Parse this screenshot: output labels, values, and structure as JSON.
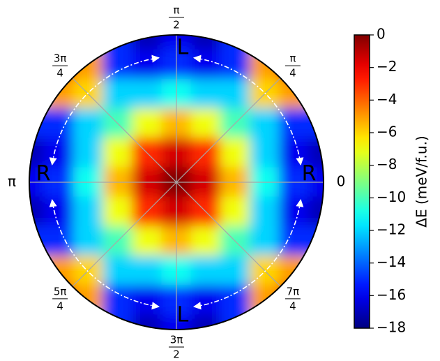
{
  "chart_data": {
    "type": "polar-heatmap",
    "x": [
      -1,
      -0.8,
      -0.6,
      -0.4,
      -0.2,
      0,
      0.2,
      0.4,
      0.6,
      0.8,
      1
    ],
    "y": [
      1,
      0.8,
      0.6,
      0.4,
      0.2,
      0,
      -0.2,
      -0.4,
      -0.6,
      -0.8,
      -1
    ],
    "z": [
      [
        null,
        null,
        null,
        -15,
        -17,
        -16,
        -17,
        -15,
        null,
        null,
        null
      ],
      [
        null,
        -2,
        -5,
        -15,
        -16,
        -15,
        -16,
        -15,
        -5,
        -2,
        null
      ],
      [
        null,
        -5,
        -6,
        -12,
        -12,
        -11,
        -12,
        -12,
        -6,
        -5,
        null
      ],
      [
        -15,
        -15,
        -12,
        -10,
        -7,
        -5.5,
        -7,
        -10,
        -12,
        -15,
        -15
      ],
      [
        -17,
        -16,
        -12,
        -7,
        -3,
        -1.5,
        -3,
        -7,
        -12,
        -16,
        -17
      ],
      [
        -16,
        -15,
        -11,
        -5.5,
        -1.5,
        0,
        -1.5,
        -5.5,
        -11,
        -15,
        -16
      ],
      [
        -17,
        -16,
        -12,
        -7,
        -3,
        -1.5,
        -3,
        -7,
        -12,
        -16,
        -17
      ],
      [
        -15,
        -15,
        -12,
        -10,
        -7,
        -5.5,
        -7,
        -10,
        -12,
        -15,
        -15
      ],
      [
        null,
        -5,
        -6,
        -12,
        -12,
        -11,
        -12,
        -12,
        -6,
        -5,
        null
      ],
      [
        null,
        -2,
        -5,
        -15,
        -16,
        -15,
        -16,
        -15,
        -5,
        -2,
        null
      ],
      [
        null,
        null,
        null,
        -15,
        -17,
        -16,
        -17,
        -15,
        null,
        null,
        null
      ]
    ],
    "colormap": "jet",
    "clim": [
      -18,
      0
    ],
    "colorbar_label": "ΔE (meV/f.u.)",
    "colorbar_ticks": [
      0,
      {
        "value": -2,
        "label": "−2"
      },
      {
        "value": -4,
        "label": "−4"
      },
      {
        "value": -6,
        "label": "−6"
      },
      {
        "value": -8,
        "label": "−8"
      },
      {
        "value": -10,
        "label": "−10"
      },
      {
        "value": -12,
        "label": "−12"
      },
      {
        "value": -14,
        "label": "−14"
      },
      {
        "value": -16,
        "label": "−16"
      },
      {
        "value": -18,
        "label": "−18"
      }
    ],
    "thetaticks": [
      {
        "value": 0,
        "label": "0"
      },
      {
        "value": 0.7854,
        "num": "π",
        "den": "4"
      },
      {
        "value": 1.5708,
        "num": "π",
        "den": "2"
      },
      {
        "value": 2.3562,
        "num": "3π",
        "den": "4"
      },
      {
        "value": 3.1416,
        "label": "π"
      },
      {
        "value": 3.927,
        "num": "5π",
        "den": "4"
      },
      {
        "value": 4.7124,
        "num": "3π",
        "den": "2"
      },
      {
        "value": 5.4978,
        "num": "7π",
        "den": "4"
      }
    ],
    "grid": true,
    "annotations": [
      {
        "text": "R",
        "theta": 0,
        "color": "#e02848"
      },
      {
        "text": "R",
        "theta": 3.1416,
        "color": "#e02848"
      },
      {
        "text": "L",
        "theta": 1.5708,
        "color": "#c03cc8"
      },
      {
        "text": "L",
        "theta": 4.7124,
        "color": "#c03cc8"
      }
    ]
  }
}
